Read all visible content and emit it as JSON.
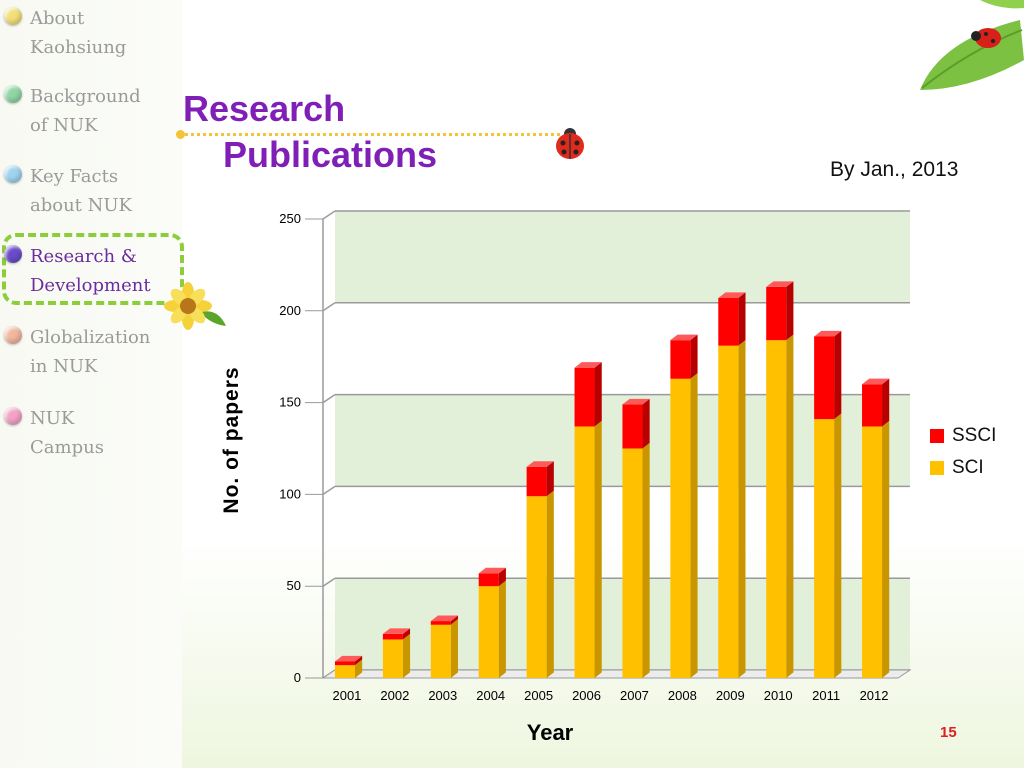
{
  "sidebar": {
    "items": [
      {
        "label": "About\nKaohsiung",
        "color": "#f3df7a",
        "active": false
      },
      {
        "label": "Background\nof NUK",
        "color": "#8fd6a4",
        "active": false
      },
      {
        "label": "Key Facts\nabout NUK",
        "color": "#9fd4ef",
        "active": false
      },
      {
        "label": "Research &\nDevelopment",
        "color": "#6a4cc9",
        "active": true
      },
      {
        "label": "Globalization\nin NUK",
        "color": "#f0b89f",
        "active": false
      },
      {
        "label": "NUK\nCampus",
        "color": "#f2a3c6",
        "active": false
      }
    ]
  },
  "title": {
    "line1": "Research",
    "line2": "Publications"
  },
  "date_note": "By Jan., 2013",
  "page_number": "15",
  "colors": {
    "sci": "#ffc000",
    "ssci": "#ff0000",
    "band": "#e2f0d9",
    "title": "#7f1fb5"
  },
  "chart_data": {
    "type": "bar",
    "stacked": true,
    "categories": [
      "2001",
      "2002",
      "2003",
      "2004",
      "2005",
      "2006",
      "2007",
      "2008",
      "2009",
      "2010",
      "2011",
      "2012"
    ],
    "series": [
      {
        "name": "SCI",
        "values": [
          7,
          21,
          29,
          50,
          99,
          137,
          125,
          163,
          181,
          184,
          141,
          137
        ]
      },
      {
        "name": "SSCI",
        "values": [
          2,
          3,
          2,
          7,
          16,
          32,
          24,
          21,
          26,
          29,
          45,
          23
        ]
      }
    ],
    "xlabel": "Year",
    "ylabel": "No. of papers",
    "ylim": [
      0,
      250
    ],
    "yticks": [
      0,
      50,
      100,
      150,
      200,
      250
    ],
    "legend": "right",
    "grid": true
  }
}
